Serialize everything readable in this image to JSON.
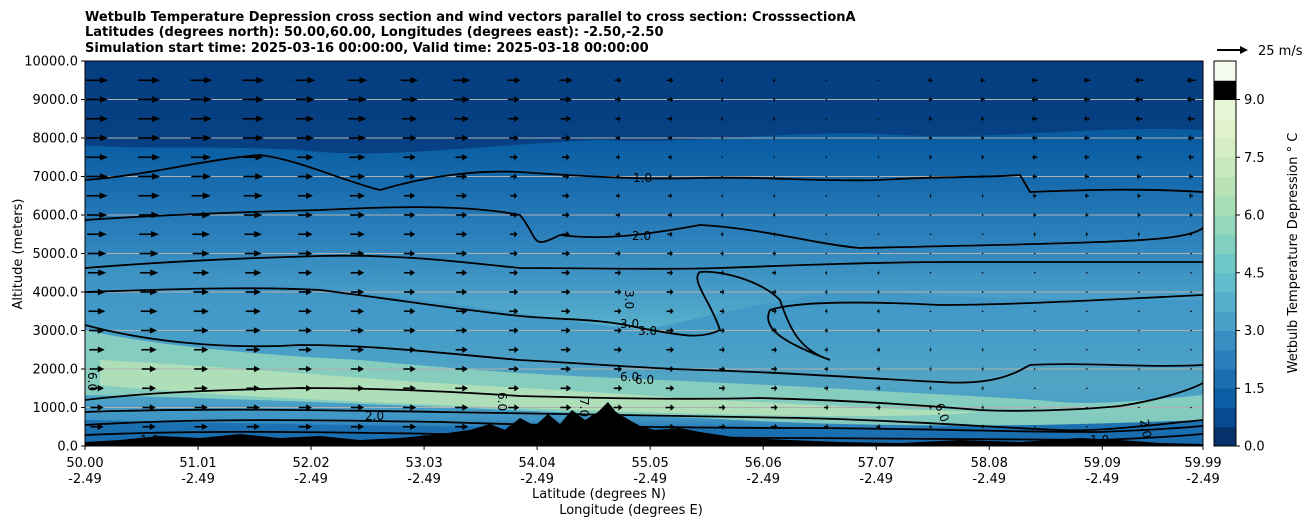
{
  "chart_data": {
    "type": "heatmap",
    "title_lines": [
      "Wetbulb Temperature Depression cross section and wind vectors parallel to cross section: CrosssectionA",
      "Latitudes (degrees north): 50.00,60.00, Longitudes (degrees east): -2.50,-2.50",
      "Simulation start time: 2025-03-16 00:00:00, Valid time: 2025-03-18 00:00:00"
    ],
    "xlabel_lat": "Latitude (degrees N)",
    "xlabel_lon": "Longitude (degrees E)",
    "ylabel": "Altitude (meters)",
    "x_ticks": [
      {
        "lat": "50.00",
        "lon": "-2.49"
      },
      {
        "lat": "51.01",
        "lon": "-2.49"
      },
      {
        "lat": "52.02",
        "lon": "-2.49"
      },
      {
        "lat": "53.03",
        "lon": "-2.49"
      },
      {
        "lat": "54.04",
        "lon": "-2.49"
      },
      {
        "lat": "55.05",
        "lon": "-2.49"
      },
      {
        "lat": "56.06",
        "lon": "-2.49"
      },
      {
        "lat": "57.07",
        "lon": "-2.49"
      },
      {
        "lat": "58.08",
        "lon": "-2.49"
      },
      {
        "lat": "59.09",
        "lon": "-2.49"
      },
      {
        "lat": "59.99",
        "lon": "-2.49"
      }
    ],
    "xlim": [
      50.0,
      59.99
    ],
    "ylim": [
      0,
      10000
    ],
    "y_ticks": [
      "0.0",
      "1000.0",
      "2000.0",
      "3000.0",
      "4000.0",
      "5000.0",
      "6000.0",
      "7000.0",
      "8000.0",
      "9000.0",
      "10000.0"
    ],
    "y_tick_values": [
      0,
      1000,
      2000,
      3000,
      4000,
      5000,
      6000,
      7000,
      8000,
      9000,
      10000
    ],
    "grid": "horizontal",
    "colorbar": {
      "label": "Wetbulb Temperature Depression ° C",
      "range": [
        0,
        10
      ],
      "ticks": [
        "0.0",
        "1.5",
        "3.0",
        "4.5",
        "6.0",
        "7.5",
        "9.0"
      ],
      "tick_values": [
        0,
        1.5,
        3.0,
        4.5,
        6.0,
        7.5,
        9.0
      ],
      "levels": 20,
      "colors": [
        "#08306b",
        "#084a91",
        "#0a5ea3",
        "#1a6fb0",
        "#2b7fbb",
        "#3a8fc2",
        "#4aa0c8",
        "#55aecb",
        "#61bccc",
        "#6fc7c8",
        "#82d0c1",
        "#96d8bb",
        "#a8deb5",
        "#b9e3b7",
        "#c8e9bd",
        "#d5eec3",
        "#e0f3cb",
        "#e9f6d6",
        "#f1faе4",
        "#f7fcf0"
      ]
    },
    "quiver_key": {
      "label": "25 m/s",
      "speed": 25
    },
    "contour_labels": [
      "1.0",
      "2.0",
      "3.0",
      "3.0",
      "3.0",
      "6.0",
      "6.0",
      "6.0",
      "7.0",
      "6.0",
      "1.0",
      "2.0",
      "1.0",
      "2.0",
      "1.0",
      "6.0"
    ],
    "wind_profile": [
      {
        "alt": 9500,
        "strength": [
          1.0,
          1.0,
          0.9,
          0.8,
          0.6,
          0.3,
          0.1,
          0.0,
          -0.2,
          -0.3,
          -0.4
        ]
      },
      {
        "alt": 7000,
        "strength": [
          1.0,
          0.9,
          0.7,
          0.5,
          0.3,
          0.15,
          0.05,
          0.0,
          -0.1,
          -0.2,
          -0.2
        ]
      },
      {
        "alt": 4000,
        "strength": [
          0.8,
          0.7,
          0.6,
          0.5,
          0.4,
          0.3,
          0.2,
          0.1,
          0.05,
          0.0,
          0.0
        ]
      },
      {
        "alt": 1000,
        "strength": [
          0.6,
          0.6,
          0.6,
          0.6,
          0.5,
          0.4,
          0.3,
          0.2,
          0.1,
          0.0,
          0.0
        ]
      }
    ]
  }
}
